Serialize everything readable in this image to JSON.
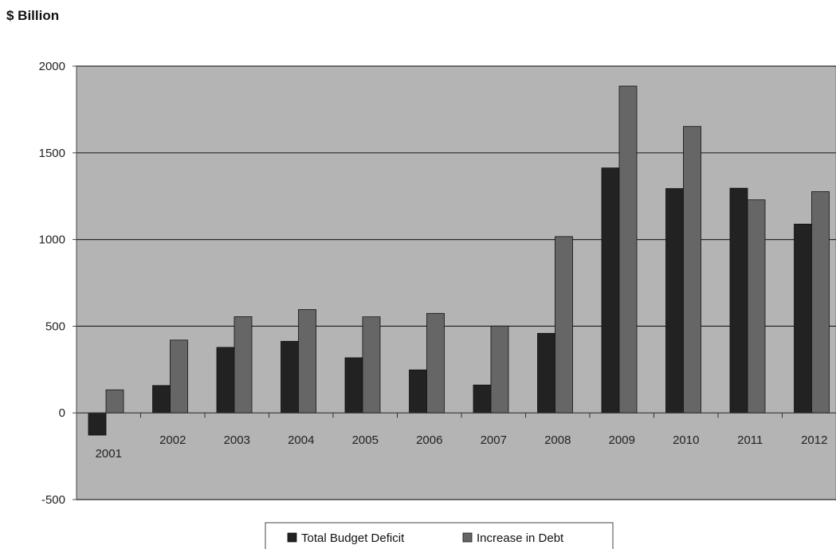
{
  "chart_data": {
    "type": "bar",
    "title": "$ Billion",
    "categories": [
      "2001",
      "2002",
      "2003",
      "2004",
      "2005",
      "2006",
      "2007",
      "2008",
      "2009",
      "2010",
      "2011",
      "2012"
    ],
    "series": [
      {
        "name": "Total Budget Deficit",
        "values": [
          -128,
          158,
          378,
          413,
          318,
          248,
          161,
          459,
          1413,
          1294,
          1296,
          1089
        ],
        "color": "#222222"
      },
      {
        "name": "Increase in Debt",
        "values": [
          133,
          420,
          555,
          596,
          554,
          574,
          501,
          1017,
          1885,
          1652,
          1229,
          1276
        ],
        "color": "#666666"
      }
    ],
    "xlabel": "",
    "ylabel": "",
    "ylim": [
      -500,
      2000
    ],
    "yticks": [
      -500,
      0,
      500,
      1000,
      1500,
      2000
    ],
    "grid": true,
    "legend": "bottom-center",
    "plot_background": "#b4b4b4"
  }
}
